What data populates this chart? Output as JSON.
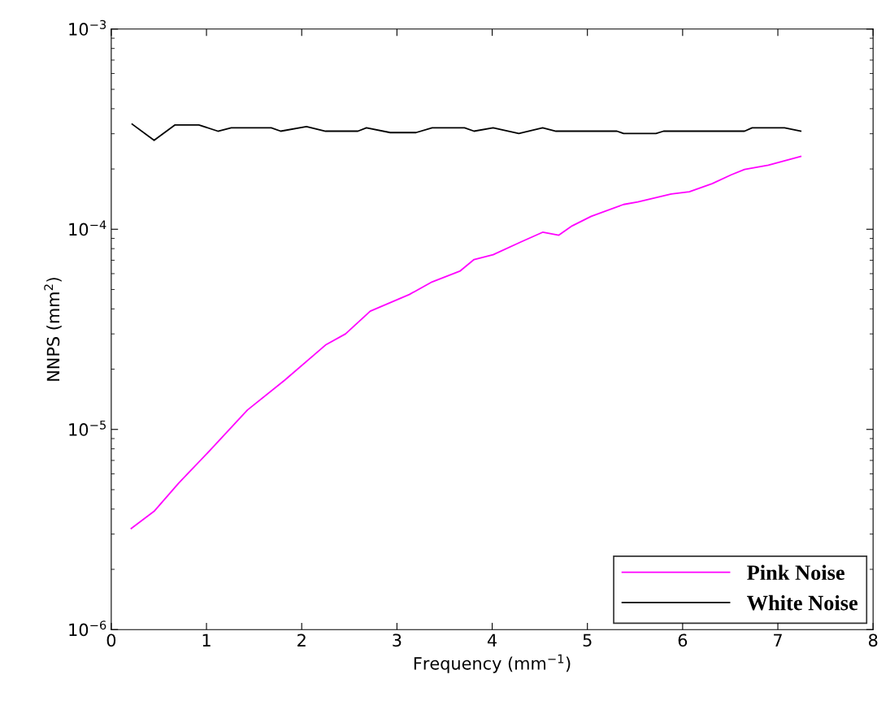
{
  "chart_data": {
    "type": "line",
    "xlabel": "Frequency (mm$^{−1}$)",
    "ylabel": "NNPS (mm$^{2}$)",
    "log": "y",
    "xlim": [
      0,
      8
    ],
    "xticks": [
      0,
      1,
      2,
      3,
      4,
      5,
      6,
      7,
      8
    ],
    "ylim": [
      1e-06,
      0.001
    ],
    "yticks": [
      {
        "value": 1e-06,
        "label": "10$^{−6}$"
      },
      {
        "value": 1e-05,
        "label": "10$^{−5}$"
      },
      {
        "value": 0.0001,
        "label": "10$^{−4}$"
      },
      {
        "value": 0.001,
        "label": "10$^{−3}$"
      }
    ],
    "grid": false,
    "legend": "bottom right",
    "line_style": "solid",
    "marker": "none",
    "series": [
      {
        "name": "Pink Noise",
        "color": "#ff00ff",
        "x": [
          0.21,
          0.45,
          0.71,
          1.03,
          1.43,
          1.82,
          2.25,
          2.46,
          2.72,
          3.13,
          3.37,
          3.66,
          3.81,
          4.01,
          4.3,
          4.53,
          4.7,
          4.84,
          5.04,
          5.38,
          5.53,
          5.88,
          6.07,
          6.31,
          6.51,
          6.65,
          6.9,
          7.24
        ],
        "values": [
          3.2e-06,
          3.9e-06,
          5.4e-06,
          7.8e-06,
          1.25e-05,
          1.76e-05,
          2.64e-05,
          3e-05,
          3.9e-05,
          4.72e-05,
          5.46e-05,
          6.17e-05,
          7.06e-05,
          7.46e-05,
          8.63e-05,
          9.66e-05,
          9.34e-05,
          0.000104,
          0.000116,
          0.000133,
          0.000137,
          0.00015,
          0.000154,
          0.000169,
          0.000187,
          0.000199,
          0.000209,
          0.000231
        ]
      },
      {
        "name": "White Noise",
        "color": "#000000",
        "x": [
          0.22,
          0.45,
          0.67,
          0.92,
          1.12,
          1.26,
          1.68,
          1.78,
          2.05,
          2.25,
          2.59,
          2.68,
          2.93,
          3.2,
          3.37,
          3.71,
          3.81,
          4.01,
          4.28,
          4.53,
          4.67,
          5.31,
          5.38,
          5.72,
          5.8,
          6.65,
          6.73,
          7.07,
          7.24
        ],
        "values": [
          0.000335,
          0.000278,
          0.000332,
          0.000332,
          0.000309,
          0.000321,
          0.000321,
          0.000309,
          0.000326,
          0.000309,
          0.000309,
          0.000321,
          0.000304,
          0.000304,
          0.000321,
          0.000321,
          0.000309,
          0.000321,
          0.000301,
          0.000321,
          0.000309,
          0.000309,
          0.000301,
          0.000301,
          0.000309,
          0.000309,
          0.000321,
          0.000321,
          0.000309
        ]
      }
    ]
  }
}
